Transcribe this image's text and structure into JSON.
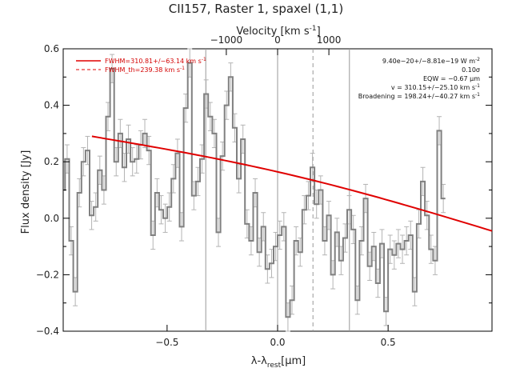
{
  "chart_data": {
    "type": "line",
    "title": "CII157, Raster 1, spaxel (1,1)",
    "xlabel": "λ-λ",
    "xlabel_sub": "rest",
    "xlabel_unit": "[μm]",
    "ylabel": "Flux density [Jy]",
    "top_label": "Velocity [km s",
    "top_label_sup": "-1",
    "top_label_end": "]",
    "xlim": [
      -0.97,
      0.97
    ],
    "ylim": [
      -0.4,
      0.6
    ],
    "x_ticks": [
      -0.5,
      0.0,
      0.5
    ],
    "x_tick_labels": [
      "−0.5",
      "0.0",
      "0.5"
    ],
    "y_ticks": [
      -0.4,
      -0.2,
      0.0,
      0.2,
      0.4,
      0.6
    ],
    "y_tick_labels": [
      "−0.4",
      "−0.2",
      "0.0",
      "0.2",
      "0.4",
      "0.6"
    ],
    "top_ticks": [
      -1000,
      0,
      1000
    ],
    "top_tick_labels": [
      "−1000",
      "0",
      "1000"
    ],
    "velocity_per_micron": 4310,
    "vertical_lines": [
      -0.325,
      0.0,
      0.325
    ],
    "dashed_line_x": 0.16,
    "fit_x_range": [
      -0.84,
      0.97
    ],
    "fit_y_at_ends": [
      0.29,
      -0.045
    ],
    "step_x_start": -0.98,
    "step_width": 0.0185,
    "series": [
      {
        "name": "",
        "color": "#808080",
        "values": [
          0.1,
          0.21,
          -0.08,
          -0.26,
          0.09,
          0.2,
          0.24,
          0.01,
          0.04,
          0.17,
          0.1,
          0.36,
          0.53,
          0.2,
          0.3,
          0.18,
          0.28,
          0.2,
          0.21,
          0.26,
          0.3,
          0.24,
          -0.06,
          0.09,
          0.03,
          0.0,
          0.04,
          0.14,
          0.23,
          -0.03,
          0.39,
          0.55,
          0.08,
          0.13,
          0.21,
          0.44,
          0.36,
          0.3,
          -0.05,
          0.22,
          0.4,
          0.5,
          0.32,
          0.14,
          0.28,
          -0.02,
          -0.08,
          0.09,
          -0.12,
          -0.03,
          -0.18,
          -0.16,
          -0.1,
          -0.06,
          -0.03,
          -0.35,
          -0.29,
          -0.08,
          -0.12,
          0.03,
          0.08,
          0.18,
          0.05,
          0.1,
          -0.08,
          0.01,
          -0.2,
          -0.05,
          -0.15,
          -0.07,
          0.03,
          -0.04,
          -0.29,
          -0.08,
          0.07,
          -0.17,
          -0.1,
          -0.23,
          -0.09,
          -0.33,
          -0.11,
          -0.13,
          -0.09,
          -0.11,
          -0.08,
          -0.06,
          -0.26,
          -0.02,
          0.13,
          0.01,
          -0.11,
          -0.15,
          0.31,
          0.07
        ]
      }
    ],
    "errors": [
      0.05,
      0.05,
      0.05,
      0.05,
      0.05,
      0.05,
      0.05,
      0.05,
      0.05,
      0.05,
      0.05,
      0.05,
      0.05,
      0.05,
      0.05,
      0.05,
      0.05,
      0.05,
      0.05,
      0.05,
      0.05,
      0.05,
      0.05,
      0.05,
      0.05,
      0.05,
      0.05,
      0.05,
      0.05,
      0.05,
      0.05,
      0.05,
      0.05,
      0.05,
      0.05,
      0.05,
      0.05,
      0.05,
      0.05,
      0.05,
      0.05,
      0.05,
      0.05,
      0.05,
      0.05,
      0.05,
      0.05,
      0.05,
      0.05,
      0.05,
      0.05,
      0.05,
      0.05,
      0.05,
      0.05,
      0.05,
      0.05,
      0.05,
      0.05,
      0.05,
      0.05,
      0.05,
      0.05,
      0.05,
      0.05,
      0.05,
      0.05,
      0.05,
      0.05,
      0.05,
      0.05,
      0.05,
      0.05,
      0.05,
      0.05,
      0.05,
      0.05,
      0.05,
      0.05,
      0.05,
      0.05,
      0.05,
      0.05,
      0.05,
      0.05,
      0.05,
      0.05,
      0.05,
      0.05,
      0.05,
      0.05,
      0.05,
      0.05,
      0.05
    ],
    "legend": {
      "placement": "top-left",
      "entries": [
        {
          "style": "solid",
          "label": "FWHM=310.81+/−63.14 km s",
          "sup": "-1"
        },
        {
          "style": "dashed",
          "label": "FWHM_th=239.38 km s",
          "sup": "-1"
        }
      ]
    },
    "annotations": [
      {
        "text": "9.40e−20+/−8.81e−19 W m",
        "sup": "-2"
      },
      {
        "text": "0.10σ",
        "sup": ""
      },
      {
        "text": "EQW = −0.67 μm",
        "sup": ""
      },
      {
        "text": "v = 310.15+/−25.10 km s",
        "sup": "-1"
      },
      {
        "text": "Broadening = 198.24+/−40.27 km s",
        "sup": "-1"
      }
    ],
    "colors": {
      "step": "#808080",
      "fit": "#e00000",
      "legend_text": "#d40000",
      "vlines": "#999999",
      "axes": "#000000"
    }
  }
}
